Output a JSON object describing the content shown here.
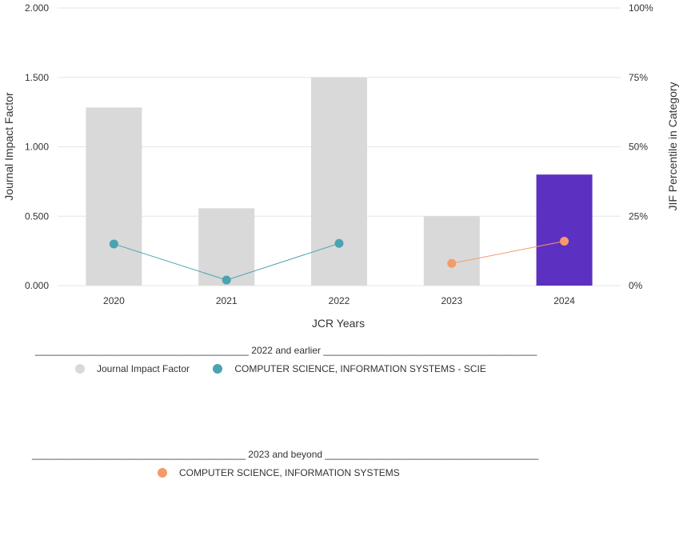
{
  "chart_data": {
    "type": "bar",
    "categories": [
      "2020",
      "2021",
      "2022",
      "2023",
      "2024"
    ],
    "xlabel": "JCR Years",
    "ylabel": "Journal Impact Factor",
    "ylabel_right": "JIF Percentile in Category",
    "ylim": [
      0,
      2
    ],
    "ylim_right": [
      0,
      100
    ],
    "y_ticks": [
      "0.000",
      "0.500",
      "1.000",
      "1.500",
      "2.000"
    ],
    "y_right_ticks": [
      "0%",
      "25%",
      "50%",
      "75%",
      "100%"
    ],
    "grid": true,
    "series": [
      {
        "name": "Journal Impact Factor",
        "kind": "bar",
        "values": [
          1.283,
          0.557,
          1.5,
          0.5,
          0.8
        ],
        "colors": [
          "#d9d9d9",
          "#d9d9d9",
          "#d9d9d9",
          "#d9d9d9",
          "#5c30c0"
        ]
      },
      {
        "name": "COMPUTER SCIENCE, INFORMATION SYSTEMS - SCIE",
        "kind": "line",
        "axis": "right",
        "color": "#4ba3b2",
        "x": [
          "2020",
          "2021",
          "2022"
        ],
        "values": [
          15,
          2,
          15.2
        ]
      },
      {
        "name": "COMPUTER SCIENCE, INFORMATION SYSTEMS",
        "kind": "line",
        "axis": "right",
        "color": "#f59a6a",
        "x": [
          "2023",
          "2024"
        ],
        "values": [
          8,
          16
        ]
      }
    ]
  },
  "legend": {
    "group1": {
      "header": "________________________________________ 2022 and earlier ________________________________________",
      "items": [
        {
          "label": "Journal Impact Factor",
          "color": "#d9d9d9"
        },
        {
          "label": "COMPUTER SCIENCE, INFORMATION SYSTEMS - SCIE",
          "color": "#4ba3b2"
        }
      ]
    },
    "group2": {
      "header": "________________________________________ 2023 and beyond ________________________________________",
      "items": [
        {
          "label": "COMPUTER SCIENCE, INFORMATION SYSTEMS",
          "color": "#f59a6a"
        }
      ]
    }
  }
}
